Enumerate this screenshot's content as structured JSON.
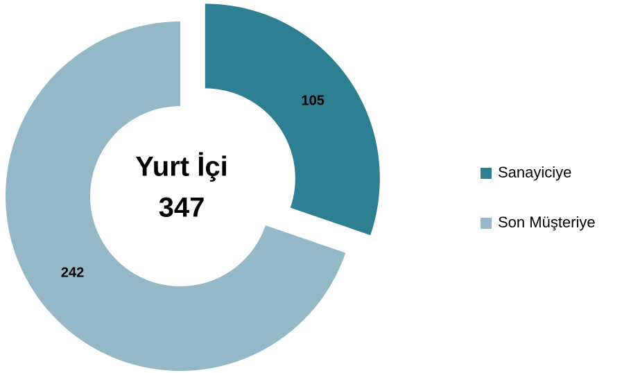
{
  "chart_data": {
    "type": "donut",
    "center_label": "Yurt İçi",
    "center_value": 347,
    "categories": [
      "Sanayiciye",
      "Son Müşteriye"
    ],
    "values": [
      105,
      242
    ],
    "colors": [
      "#2f7f92",
      "#94b8c6"
    ],
    "exploded": [
      true,
      false
    ],
    "legend": "right"
  }
}
